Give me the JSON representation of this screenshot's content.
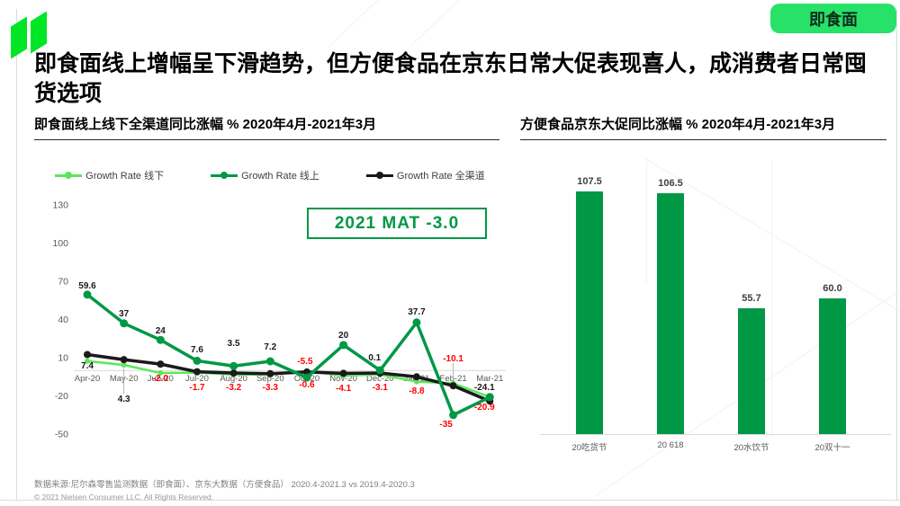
{
  "page": {
    "badge_label": "即食面",
    "title": "即食面线上增幅呈下滑趋势，但方便食品在京东日常大促表现喜人，成消费者日常囤货选项",
    "source_note": "数据来源:尼尔森零售监测数据（即食面）、京东大数据（方便食品） 2020.4-2021.3 vs 2019.4-2020.3",
    "copyright": "© 2021 Nielsen Consumer LLC. All Rights Reserved."
  },
  "colors": {
    "brand_green": "#00E626",
    "badge_green": "#28E169",
    "online_green": "#009845",
    "offline_green": "#5CE65C",
    "omni_black": "#1A1A1A",
    "bar_green": "#009845",
    "negative_red": "#FF0000",
    "label_dark": "#1A1A1A",
    "axis_text": "#595959"
  },
  "chart_data": [
    {
      "type": "line",
      "title": "即食面线上线下全渠道同比涨幅  % 2020年4月-2021年3月",
      "annotation": "2021 MAT -3.0",
      "categories": [
        "Apr-20",
        "May-20",
        "Jun-20",
        "Jul-20",
        "Aug-20",
        "Sep-20",
        "Oct-20",
        "Nov-20",
        "Dec-20",
        "Jan-21",
        "Feb-21",
        "Mar-21"
      ],
      "ylim": [
        -50,
        130
      ],
      "yticks": [
        130,
        100,
        70,
        40,
        10,
        -20,
        -50
      ],
      "legend_position": "top",
      "grid": "zero-line-only",
      "series": [
        {
          "name": "Growth Rate 线下",
          "color_key": "offline_green",
          "values": [
            7.4,
            4.3,
            -2.0,
            -1.7,
            -3.2,
            -3.3,
            -0.6,
            -4.1,
            -3.1,
            -8.8,
            -10.1,
            -20.9
          ]
        },
        {
          "name": "Growth Rate 线上",
          "color_key": "online_green",
          "values": [
            59.6,
            37,
            24,
            7.6,
            3.5,
            7.2,
            -5.5,
            20,
            0.1,
            37.7,
            -35,
            -20.9
          ]
        },
        {
          "name": "Growth Rate 全渠道",
          "color_key": "omni_black",
          "values": [
            12.5,
            8.5,
            5,
            -1,
            -2,
            -2.5,
            -1.2,
            -2.2,
            -2,
            -5,
            -12,
            -24.1
          ]
        }
      ],
      "point_labels": [
        {
          "si": 0,
          "mi": 0,
          "text": "7.4",
          "c": "k",
          "ay": 410
        },
        {
          "si": 0,
          "mi": 1,
          "text": "4.3",
          "c": "k",
          "ay": 447,
          "leader": true
        },
        {
          "si": 0,
          "mi": 2,
          "text": "-2.0",
          "c": "r",
          "ay": 424
        },
        {
          "si": 0,
          "mi": 3,
          "text": "-1.7",
          "c": "r",
          "ay": 434
        },
        {
          "si": 0,
          "mi": 4,
          "text": "-3.2",
          "c": "r",
          "ay": 434
        },
        {
          "si": 0,
          "mi": 5,
          "text": "-3.3",
          "c": "r",
          "ay": 434
        },
        {
          "si": 0,
          "mi": 6,
          "text": "-0.6",
          "c": "r",
          "ay": 431
        },
        {
          "si": 0,
          "mi": 7,
          "text": "-4.1",
          "c": "r",
          "ay": 435
        },
        {
          "si": 0,
          "mi": 8,
          "text": "-3.1",
          "c": "r",
          "ay": 434
        },
        {
          "si": 0,
          "mi": 9,
          "text": "-8.8",
          "c": "r",
          "ay": 438
        },
        {
          "si": 0,
          "mi": 10,
          "text": "-10.1",
          "c": "r",
          "ay": 402,
          "leader": true
        },
        {
          "si": 1,
          "mi": 0,
          "text": "59.6",
          "c": "k",
          "ay": 321
        },
        {
          "si": 1,
          "mi": 1,
          "text": "37",
          "c": "k",
          "ay": 352
        },
        {
          "si": 1,
          "mi": 2,
          "text": "24",
          "c": "k",
          "ay": 371
        },
        {
          "si": 1,
          "mi": 3,
          "text": "7.6",
          "c": "k",
          "ay": 392
        },
        {
          "si": 1,
          "mi": 4,
          "text": "3.5",
          "c": "k",
          "ay": 385
        },
        {
          "si": 1,
          "mi": 5,
          "text": "7.2",
          "c": "k",
          "ay": 389
        },
        {
          "si": 1,
          "mi": 6,
          "text": "-5.5",
          "c": "r",
          "ay": 405,
          "dx": -2
        },
        {
          "si": 1,
          "mi": 7,
          "text": "20",
          "c": "k",
          "ay": 376
        },
        {
          "si": 1,
          "mi": 8,
          "text": "0.1",
          "c": "k",
          "ay": 401,
          "dx": -6
        },
        {
          "si": 1,
          "mi": 9,
          "text": "37.7",
          "c": "k",
          "ay": 350
        },
        {
          "si": 1,
          "mi": 10,
          "text": "-35",
          "c": "r",
          "ay": 475,
          "dx": -8
        },
        {
          "si": 1,
          "mi": 11,
          "text": "-20.9",
          "c": "r",
          "ay": 456,
          "dx": -6
        },
        {
          "si": 2,
          "mi": 11,
          "text": "-24.1",
          "c": "k",
          "ay": 434,
          "dx": -6
        }
      ]
    },
    {
      "type": "bar",
      "title": "方便食品京东大促同比涨幅  % 2020年4月-2021年3月",
      "categories": [
        "20吃货节",
        "20 618",
        "20水饮节",
        "20双十一"
      ],
      "values": [
        107.5,
        106.5,
        55.7,
        60.0
      ],
      "value_labels": [
        "107.5",
        "106.5",
        "55.7",
        "60.0"
      ],
      "ylim": [
        0,
        115
      ],
      "grid": "off"
    }
  ]
}
